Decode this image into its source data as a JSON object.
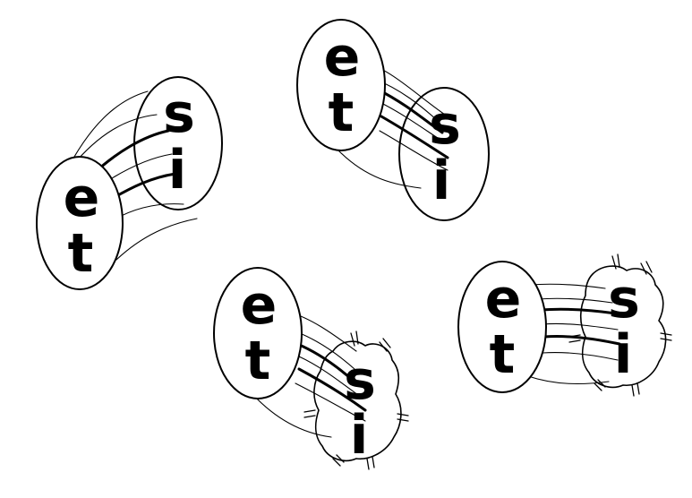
{
  "figures": [
    {
      "top_left": "s",
      "bottom_left": "i",
      "top_right": "e",
      "bottom_right": "t"
    },
    {
      "top_left": "e",
      "bottom_left": "t",
      "top_right": "s",
      "bottom_right": "i"
    },
    {
      "top_left": "e",
      "bottom_left": "t",
      "top_right": "s",
      "bottom_right": "i"
    },
    {
      "top_left": "e",
      "bottom_left": "t",
      "top_right": "s",
      "bottom_right": "i"
    }
  ]
}
